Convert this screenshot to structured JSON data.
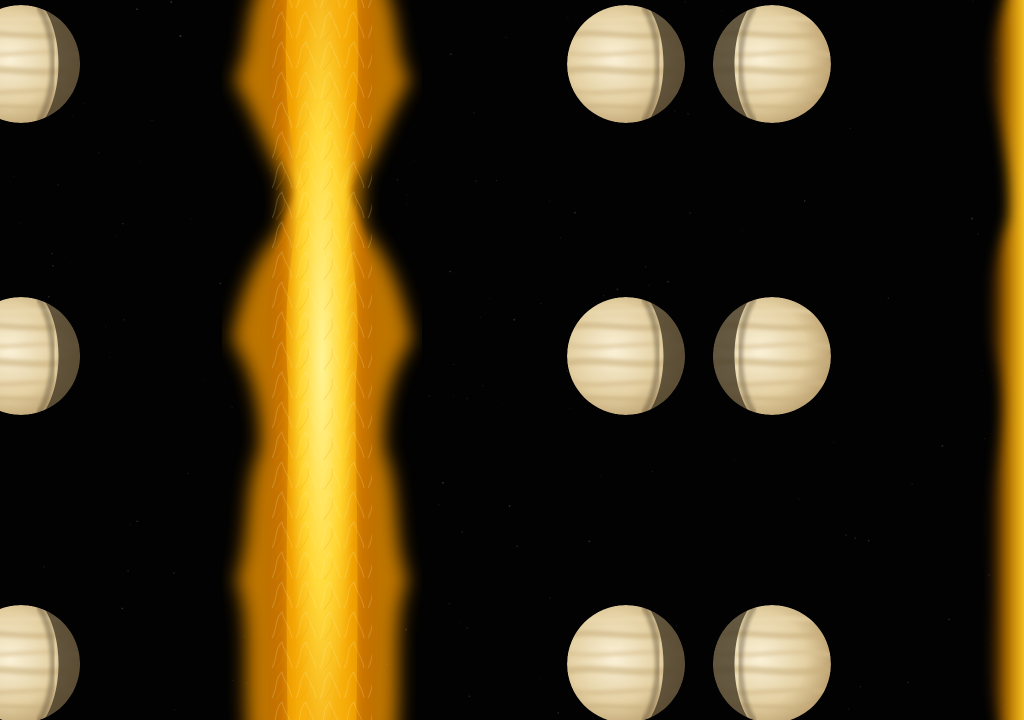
{
  "scene": {
    "background_color": "#020202",
    "flame_colors": [
      "#fff6a0",
      "#ffd630",
      "#f5a400",
      "#b85a00"
    ],
    "planet_colors": {
      "light": "#fbf2d8",
      "mid": "#e4d0a2",
      "band": "#c8ae7c",
      "shadow": "#3f3522"
    }
  },
  "elements": {
    "flame_columns": [
      "sun-flame-column",
      "sun-flame-column-edge"
    ],
    "planets": [
      {
        "id": "planet-r1-left",
        "phase": "lit-left-dark-right"
      },
      {
        "id": "planet-r1-center-a",
        "phase": "lit-left-dark-right"
      },
      {
        "id": "planet-r1-center-b",
        "phase": "dark-left-lit-right"
      },
      {
        "id": "planet-r2-left",
        "phase": "lit-left-dark-right"
      },
      {
        "id": "planet-r2-center-a",
        "phase": "lit-left-dark-right"
      },
      {
        "id": "planet-r2-center-b",
        "phase": "dark-left-lit-right"
      },
      {
        "id": "planet-r3-left",
        "phase": "lit-left-dark-right"
      },
      {
        "id": "planet-r3-center-a",
        "phase": "lit-left-dark-right"
      },
      {
        "id": "planet-r3-center-b",
        "phase": "dark-left-lit-right"
      }
    ]
  }
}
